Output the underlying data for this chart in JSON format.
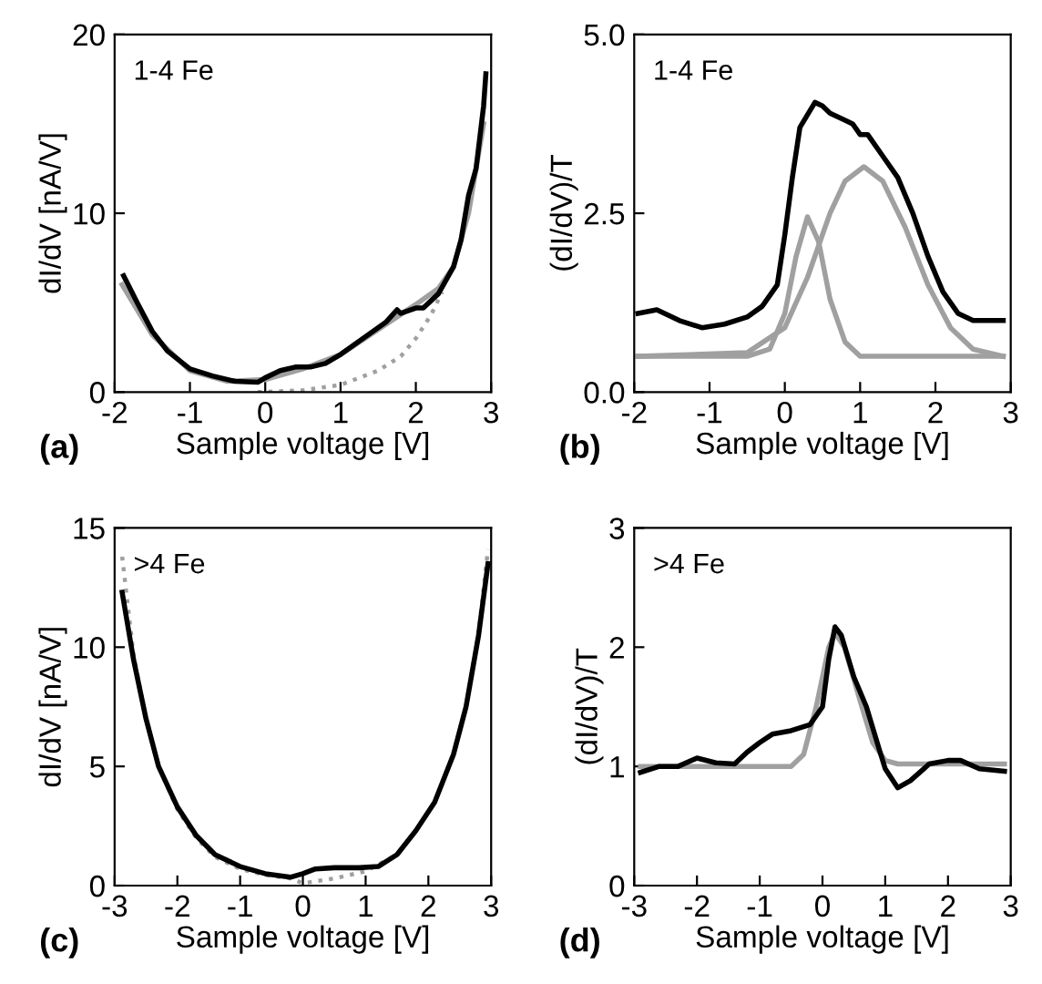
{
  "chart_data": [
    {
      "type": "line",
      "xlabel": "Sample voltage [V]",
      "ylabel": "dI/dV [nA/V]",
      "annotations": [
        "1-4 Fe",
        "(a)"
      ],
      "xlim": [
        -2,
        3
      ],
      "xticks": [
        -2,
        -1,
        0,
        1,
        2,
        3
      ],
      "ylim": [
        0,
        20
      ],
      "yticks": [
        0,
        10,
        20
      ],
      "series": [
        {
          "color": "#a0a0a0",
          "line_style": "solid",
          "x": [
            -1.9,
            -1.5,
            -1.0,
            -0.5,
            0.0,
            0.5,
            1.0,
            1.5,
            2.0,
            2.3,
            2.5,
            2.7,
            2.9
          ],
          "values": [
            6.0,
            3.2,
            1.2,
            0.6,
            0.7,
            1.3,
            2.1,
            3.5,
            4.9,
            5.8,
            7.0,
            10,
            15
          ]
        },
        {
          "color": "#a0a0a0",
          "line_style": "dotted",
          "x": [
            -0.1,
            0.5,
            1.0,
            1.5,
            1.8,
            2.0,
            2.2,
            2.35
          ],
          "values": [
            0,
            0.1,
            0.4,
            1.2,
            2.0,
            3.0,
            4.3,
            5.6
          ]
        },
        {
          "color": "#000000",
          "line_style": "solid",
          "x": [
            -1.88,
            -1.7,
            -1.5,
            -1.3,
            -1.0,
            -0.7,
            -0.4,
            -0.1,
            0.0,
            0.2,
            0.4,
            0.6,
            0.8,
            1.0,
            1.2,
            1.4,
            1.6,
            1.75,
            1.8,
            2.0,
            2.1,
            2.3,
            2.5,
            2.6,
            2.7,
            2.8,
            2.9,
            2.93
          ],
          "values": [
            6.5,
            5.0,
            3.4,
            2.3,
            1.3,
            0.9,
            0.6,
            0.55,
            0.8,
            1.2,
            1.4,
            1.4,
            1.6,
            2.1,
            2.7,
            3.3,
            3.9,
            4.6,
            4.4,
            4.7,
            4.7,
            5.5,
            7.0,
            8.5,
            11.0,
            12.5,
            16.0,
            17.8
          ]
        }
      ]
    },
    {
      "type": "line",
      "xlabel": "Sample voltage [V]",
      "ylabel": "(dI/dV)/T",
      "annotations": [
        "1-4 Fe",
        "(b)"
      ],
      "xlim": [
        -2,
        3
      ],
      "xticks": [
        -2,
        -1,
        0,
        1,
        2,
        3
      ],
      "ylim": [
        0,
        5
      ],
      "yticks": [
        {
          "value": 0,
          "label": "0.0"
        },
        2.5,
        {
          "value": 5,
          "label": "5.0"
        }
      ],
      "series": [
        {
          "color": "#a0a0a0",
          "line_style": "solid",
          "x": [
            -1.95,
            -0.5,
            -0.2,
            0.0,
            0.15,
            0.3,
            0.45,
            0.6,
            0.8,
            1.0,
            2.9
          ],
          "values": [
            0.5,
            0.5,
            0.6,
            1.1,
            1.9,
            2.45,
            2.1,
            1.3,
            0.7,
            0.5,
            0.5
          ]
        },
        {
          "color": "#a0a0a0",
          "line_style": "solid",
          "x": [
            -1.95,
            -0.5,
            0.0,
            0.3,
            0.6,
            0.8,
            1.05,
            1.3,
            1.6,
            1.9,
            2.2,
            2.5,
            2.9
          ],
          "values": [
            0.5,
            0.55,
            0.9,
            1.6,
            2.5,
            2.95,
            3.15,
            2.95,
            2.3,
            1.5,
            0.9,
            0.6,
            0.5
          ]
        },
        {
          "color": "#000000",
          "line_style": "solid",
          "x": [
            -1.95,
            -1.7,
            -1.4,
            -1.1,
            -0.8,
            -0.5,
            -0.3,
            -0.1,
            0.0,
            0.1,
            0.2,
            0.4,
            0.5,
            0.6,
            0.8,
            0.9,
            1.0,
            1.1,
            1.3,
            1.5,
            1.7,
            1.9,
            2.1,
            2.3,
            2.5,
            2.7,
            2.9
          ],
          "values": [
            1.1,
            1.15,
            1.0,
            0.9,
            0.95,
            1.05,
            1.2,
            1.5,
            2.2,
            3.0,
            3.7,
            4.05,
            4.0,
            3.9,
            3.8,
            3.75,
            3.6,
            3.6,
            3.3,
            3.0,
            2.5,
            1.9,
            1.4,
            1.1,
            1.0,
            1.0,
            1.0
          ]
        }
      ]
    },
    {
      "type": "line",
      "xlabel": "Sample voltage [V]",
      "ylabel": "dI/dV [nA/V]",
      "annotations": [
        ">4 Fe",
        "(c)"
      ],
      "xlim": [
        -3,
        3
      ],
      "xticks": [
        -3,
        -2,
        -1,
        0,
        1,
        2,
        3
      ],
      "ylim": [
        0,
        15
      ],
      "yticks": [
        0,
        5,
        10,
        15
      ],
      "series": [
        {
          "color": "#a0a0a0",
          "line_style": "dotted",
          "x": [
            -2.88,
            -2.7,
            -2.5,
            -2.3,
            -2.0,
            -1.7,
            -1.4,
            -1.0,
            -0.6,
            -0.2,
            0.0,
            0.5,
            1.0,
            1.5,
            1.8,
            2.1,
            2.4,
            2.6,
            2.8,
            2.95
          ],
          "values": [
            13.8,
            9.7,
            7.0,
            5.0,
            3.2,
            2.0,
            1.2,
            0.7,
            0.45,
            0.3,
            0.1,
            0.3,
            0.6,
            1.3,
            2.3,
            3.5,
            5.5,
            7.5,
            10.6,
            14.1
          ]
        },
        {
          "color": "#000000",
          "line_style": "solid",
          "x": [
            -2.88,
            -2.7,
            -2.5,
            -2.3,
            -2.0,
            -1.7,
            -1.4,
            -1.0,
            -0.6,
            -0.2,
            0.0,
            0.2,
            0.5,
            0.9,
            1.2,
            1.5,
            1.8,
            2.1,
            2.4,
            2.6,
            2.8,
            2.95
          ],
          "values": [
            12.3,
            9.5,
            7.0,
            5.0,
            3.3,
            2.1,
            1.3,
            0.8,
            0.5,
            0.35,
            0.5,
            0.7,
            0.75,
            0.75,
            0.8,
            1.3,
            2.3,
            3.5,
            5.5,
            7.5,
            10.5,
            13.5
          ]
        }
      ]
    },
    {
      "type": "line",
      "xlabel": "Sample voltage [V]",
      "ylabel": "(dI/dV)/T",
      "annotations": [
        ">4 Fe",
        "(d)"
      ],
      "xlim": [
        -3,
        3
      ],
      "xticks": [
        -3,
        -2,
        -1,
        0,
        1,
        2,
        3
      ],
      "ylim": [
        0,
        3
      ],
      "yticks": [
        0,
        1,
        2,
        3
      ],
      "series": [
        {
          "color": "#a0a0a0",
          "line_style": "solid",
          "x": [
            -2.9,
            -0.5,
            -0.3,
            -0.1,
            0.1,
            0.2,
            0.35,
            0.6,
            0.8,
            1.0,
            1.2,
            2.9
          ],
          "values": [
            1.0,
            1.0,
            1.1,
            1.5,
            2.0,
            2.12,
            2.0,
            1.55,
            1.2,
            1.05,
            1.02,
            1.02
          ]
        },
        {
          "color": "#000000",
          "line_style": "solid",
          "x": [
            -2.9,
            -2.6,
            -2.3,
            -2.0,
            -1.7,
            -1.4,
            -1.2,
            -1.0,
            -0.8,
            -0.5,
            -0.2,
            0.0,
            0.1,
            0.2,
            0.3,
            0.5,
            0.7,
            0.9,
            1.0,
            1.2,
            1.4,
            1.7,
            2.0,
            2.2,
            2.5,
            2.9
          ],
          "values": [
            0.95,
            1.0,
            1.0,
            1.07,
            1.03,
            1.02,
            1.12,
            1.2,
            1.27,
            1.3,
            1.35,
            1.5,
            1.9,
            2.17,
            2.1,
            1.75,
            1.5,
            1.15,
            0.98,
            0.82,
            0.88,
            1.02,
            1.05,
            1.05,
            0.98,
            0.96
          ]
        }
      ]
    }
  ]
}
